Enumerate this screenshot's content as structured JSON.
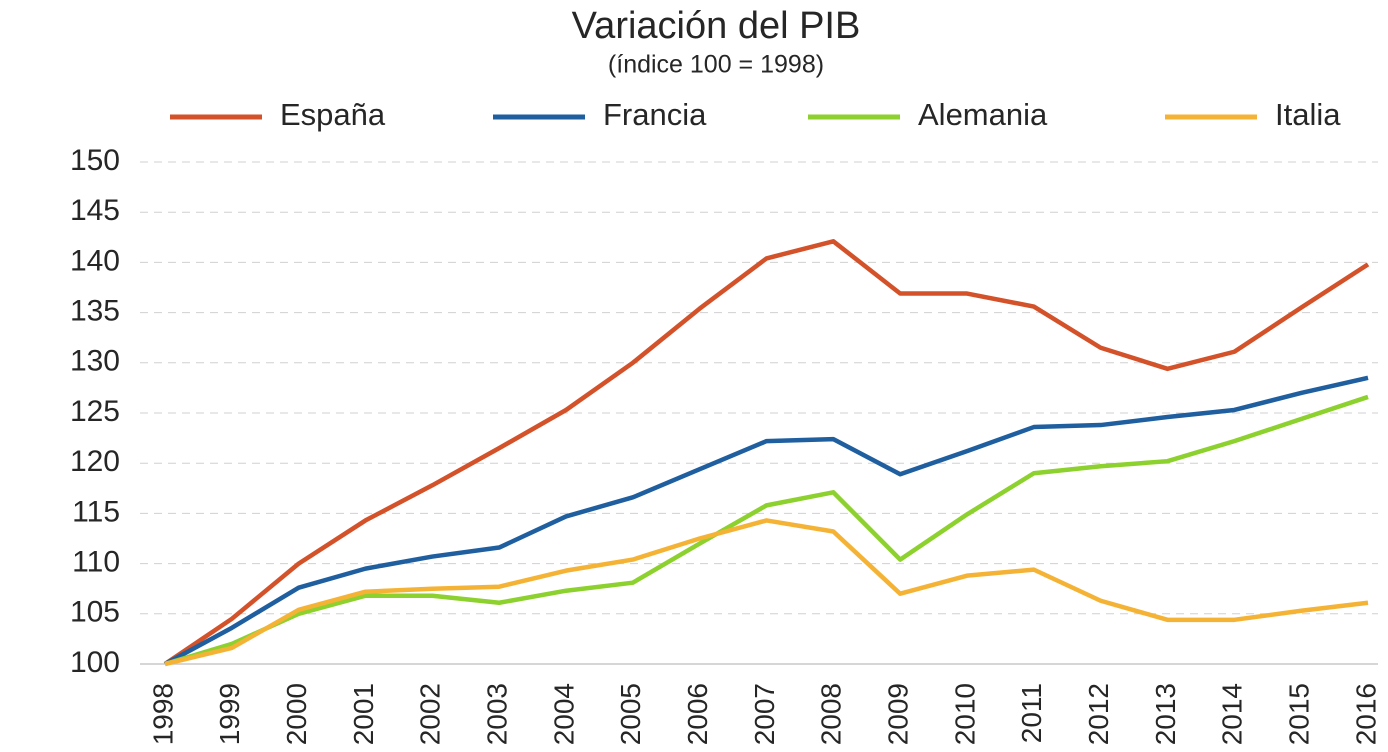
{
  "chart_data": {
    "type": "line",
    "title": "Variación del PIB",
    "subtitle": "(índice 100 = 1998)",
    "categories": [
      "1998",
      "1999",
      "2000",
      "2001",
      "2002",
      "2003",
      "2004",
      "2005",
      "2006",
      "2007",
      "2008",
      "2009",
      "2010",
      "2011",
      "2012",
      "2013",
      "2014",
      "2015",
      "2016"
    ],
    "series": [
      {
        "name": "España",
        "color": "#d3522a",
        "values": [
          100,
          104.5,
          110,
          114.3,
          117.8,
          121.5,
          125.3,
          130,
          135.4,
          140.4,
          142.1,
          136.9,
          136.9,
          135.6,
          131.5,
          129.4,
          131.1,
          135.5,
          139.8
        ]
      },
      {
        "name": "Francia",
        "color": "#1f5fa0",
        "values": [
          100,
          103.6,
          107.6,
          109.5,
          110.7,
          111.6,
          114.7,
          116.6,
          119.4,
          122.2,
          122.4,
          118.9,
          121.2,
          123.6,
          123.8,
          124.6,
          125.3,
          127.0,
          128.5
        ]
      },
      {
        "name": "Alemania",
        "color": "#8cd12d",
        "values": [
          100,
          102,
          105,
          106.8,
          106.8,
          106.1,
          107.3,
          108.1,
          112,
          115.8,
          117.1,
          110.4,
          114.9,
          119,
          119.7,
          120.2,
          122.2,
          124.4,
          126.6
        ]
      },
      {
        "name": "Italia",
        "color": "#f5b335",
        "values": [
          100,
          101.6,
          105.4,
          107.2,
          107.5,
          107.7,
          109.3,
          110.4,
          112.5,
          114.3,
          113.2,
          107,
          108.8,
          109.4,
          106.3,
          104.4,
          104.4,
          105.3,
          106.1
        ]
      }
    ],
    "ylim": [
      100,
      150
    ],
    "yticks": [
      100,
      105,
      110,
      115,
      120,
      125,
      130,
      135,
      140,
      145,
      150
    ],
    "grid": true,
    "legend": "top"
  }
}
